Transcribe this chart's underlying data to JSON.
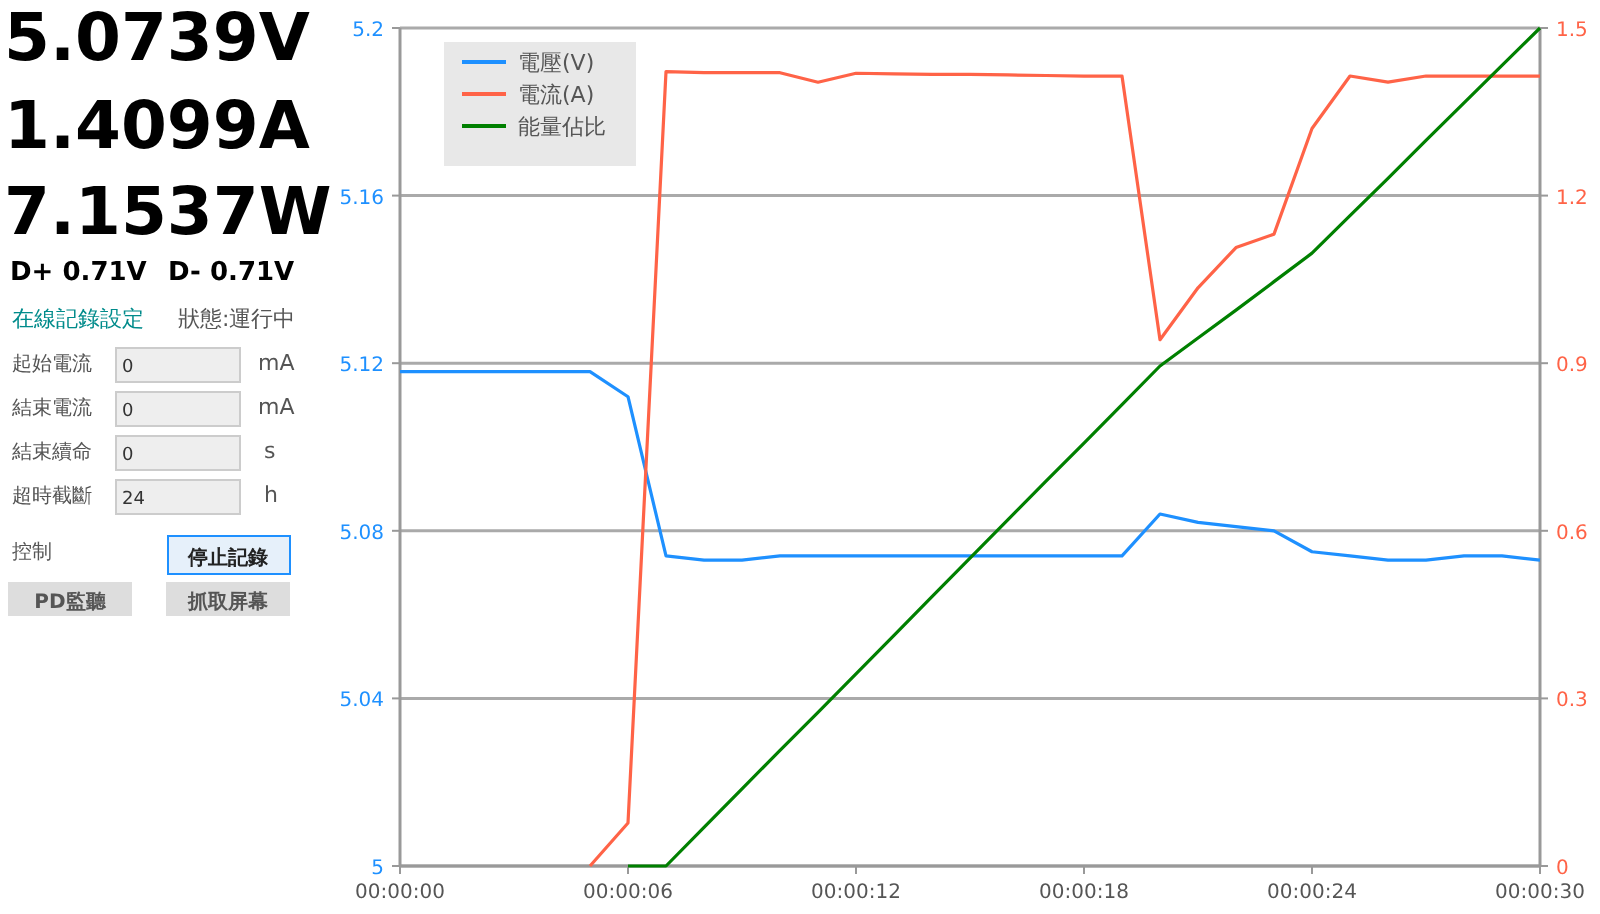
{
  "chart_data": [
    {
      "type": "other",
      "annotations": [
        "5.0739V",
        "1.4099A",
        "7.1537W",
        "D+ 0.71V",
        "D- 0.71V",
        "在線記錄設定",
        "狀態:運行中",
        "起始電流",
        "0",
        "mA",
        "結束電流",
        "0",
        "mA",
        "結束續命",
        "0",
        "s",
        "超時截斷",
        "24",
        "h",
        "控制",
        "停止記錄",
        "PD監聽",
        "抓取屏幕"
      ]
    },
    {
      "type": "line",
      "x": [
        0,
        1,
        2,
        3,
        4,
        5,
        6,
        7,
        8,
        9,
        10,
        11,
        12,
        13,
        14,
        15,
        16,
        17,
        18,
        19,
        20,
        21,
        22,
        23,
        24,
        25,
        26,
        27,
        28,
        29,
        30
      ],
      "xlim": [
        0,
        30
      ],
      "xticks": [
        {
          "value": 0,
          "label": "00:00:00"
        },
        {
          "value": 6,
          "label": "00:00:06"
        },
        {
          "value": 12,
          "label": "00:00:12"
        },
        {
          "value": 18,
          "label": "00:00:18"
        },
        {
          "value": 24,
          "label": "00:00:24"
        },
        {
          "value": 30,
          "label": "00:00:30"
        }
      ],
      "ylim": [
        5,
        5.2
      ],
      "yticks": [
        5,
        5.04,
        5.08,
        5.12,
        5.16,
        5.2
      ],
      "y2lim": [
        0,
        1.5
      ],
      "y2ticks": [
        0,
        0.3,
        0.6,
        0.9,
        1.2,
        1.5
      ],
      "grid": "y",
      "legend": "top left",
      "series": [
        {
          "name": "電壓(V)",
          "color": "#1e90ff",
          "axis": "y",
          "values": [
            5.118,
            5.118,
            5.118,
            5.118,
            5.118,
            5.118,
            5.112,
            5.074,
            5.073,
            5.073,
            5.074,
            5.074,
            5.074,
            5.074,
            5.074,
            5.074,
            5.074,
            5.074,
            5.074,
            5.074,
            5.084,
            5.082,
            5.081,
            5.08,
            5.075,
            5.074,
            5.073,
            5.073,
            5.074,
            5.074,
            5.073
          ]
        },
        {
          "name": "電流(A)",
          "color": "#ff6347",
          "axis": "y2",
          "values": [
            null,
            null,
            null,
            null,
            null,
            0,
            0.077,
            1.422,
            1.42,
            1.42,
            1.42,
            1.403,
            1.419,
            1.418,
            1.417,
            1.417,
            1.416,
            1.415,
            1.414,
            1.414,
            0.942,
            1.035,
            1.107,
            1.131,
            1.32,
            1.414,
            1.403,
            1.414,
            1.414,
            1.414,
            1.414
          ]
        },
        {
          "name": "能量佔比",
          "color": "#008000",
          "axis": "y2",
          "values": [
            null,
            null,
            null,
            null,
            null,
            null,
            0,
            0,
            0.069,
            0.138,
            0.207,
            0.275,
            0.344,
            0.413,
            0.482,
            0.551,
            0.62,
            0.689,
            0.757,
            0.826,
            0.895,
            0.945,
            0.995,
            1.046,
            1.097,
            1.164,
            1.231,
            1.299,
            1.366,
            1.433,
            1.5
          ]
        }
      ]
    }
  ]
}
